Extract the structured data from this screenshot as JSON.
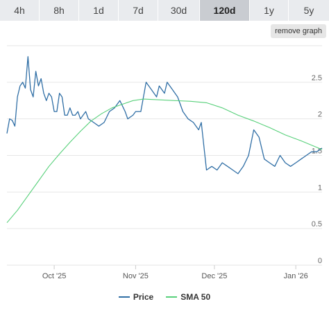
{
  "timeframes": [
    "4h",
    "8h",
    "1d",
    "7d",
    "30d",
    "120d",
    "1y",
    "5y"
  ],
  "active_timeframe": "120d",
  "remove_graph_label": "remove graph",
  "colors": {
    "price": "#2f6ea5",
    "sma": "#57d07a",
    "grid": "#e6e6e6",
    "axis_text": "#666666"
  },
  "chart_data": {
    "type": "line",
    "x_tick_labels": [
      "Oct '25",
      "Nov '25",
      "Dec '25",
      "Jan '26"
    ],
    "x_ticks": [
      "2025-10-01",
      "2025-11-01",
      "2025-12-01",
      "2026-01-01"
    ],
    "xlim": [
      "2025-09-13",
      "2026-01-11"
    ],
    "y_ticks": [
      0,
      0.5,
      1,
      1.5,
      2,
      2.5
    ],
    "y_tick_labels": [
      "0",
      "0.5",
      "1",
      "1.5",
      "2",
      "2.5"
    ],
    "ylim": [
      0,
      3.0
    ],
    "grid": true,
    "legend_position": "bottom",
    "series": [
      {
        "name": "Price",
        "x": [
          "2025-09-13",
          "2025-09-14",
          "2025-09-15",
          "2025-09-16",
          "2025-09-17",
          "2025-09-18",
          "2025-09-19",
          "2025-09-20",
          "2025-09-21",
          "2025-09-22",
          "2025-09-23",
          "2025-09-24",
          "2025-09-25",
          "2025-09-26",
          "2025-09-27",
          "2025-09-28",
          "2025-09-29",
          "2025-09-30",
          "2025-10-01",
          "2025-10-02",
          "2025-10-03",
          "2025-10-04",
          "2025-10-05",
          "2025-10-06",
          "2025-10-07",
          "2025-10-08",
          "2025-10-09",
          "2025-10-10",
          "2025-10-11",
          "2025-10-12",
          "2025-10-13",
          "2025-10-14",
          "2025-10-16",
          "2025-10-18",
          "2025-10-20",
          "2025-10-22",
          "2025-10-24",
          "2025-10-26",
          "2025-10-28",
          "2025-10-29",
          "2025-10-31",
          "2025-11-01",
          "2025-11-03",
          "2025-11-05",
          "2025-11-07",
          "2025-11-09",
          "2025-11-10",
          "2025-11-12",
          "2025-11-13",
          "2025-11-15",
          "2025-11-17",
          "2025-11-19",
          "2025-11-21",
          "2025-11-23",
          "2025-11-24",
          "2025-11-25",
          "2025-11-26",
          "2025-11-28",
          "2025-11-30",
          "2025-12-02",
          "2025-12-04",
          "2025-12-06",
          "2025-12-08",
          "2025-12-10",
          "2025-12-12",
          "2025-12-14",
          "2025-12-16",
          "2025-12-18",
          "2025-12-20",
          "2025-12-22",
          "2025-12-24",
          "2025-12-26",
          "2025-12-28",
          "2025-12-30",
          "2026-01-01",
          "2026-01-03",
          "2026-01-05",
          "2026-01-07",
          "2026-01-09",
          "2026-01-11"
        ],
        "y": [
          1.8,
          2.0,
          1.98,
          1.9,
          2.3,
          2.45,
          2.5,
          2.42,
          2.85,
          2.4,
          2.3,
          2.65,
          2.45,
          2.55,
          2.35,
          2.25,
          2.35,
          2.3,
          2.1,
          2.1,
          2.35,
          2.3,
          2.05,
          2.05,
          2.15,
          2.05,
          2.05,
          2.1,
          2.0,
          2.05,
          2.1,
          2.0,
          1.95,
          1.9,
          1.95,
          2.1,
          2.15,
          2.25,
          2.1,
          2.0,
          2.05,
          2.1,
          2.1,
          2.5,
          2.4,
          2.3,
          2.45,
          2.35,
          2.5,
          2.4,
          2.3,
          2.1,
          2.0,
          1.95,
          1.9,
          1.85,
          1.95,
          1.3,
          1.35,
          1.3,
          1.4,
          1.35,
          1.3,
          1.25,
          1.35,
          1.5,
          1.85,
          1.75,
          1.45,
          1.4,
          1.35,
          1.5,
          1.4,
          1.35,
          1.4,
          1.45,
          1.5,
          1.55,
          1.55,
          1.6
        ]
      },
      {
        "name": "SMA 50",
        "x": [
          "2025-09-13",
          "2025-09-17",
          "2025-09-21",
          "2025-09-25",
          "2025-09-29",
          "2025-10-03",
          "2025-10-07",
          "2025-10-11",
          "2025-10-15",
          "2025-10-19",
          "2025-10-23",
          "2025-10-27",
          "2025-10-31",
          "2025-11-04",
          "2025-11-10",
          "2025-11-16",
          "2025-11-22",
          "2025-11-28",
          "2025-12-04",
          "2025-12-10",
          "2025-12-16",
          "2025-12-22",
          "2025-12-28",
          "2026-01-03",
          "2026-01-11"
        ],
        "y": [
          0.58,
          0.75,
          0.95,
          1.15,
          1.35,
          1.52,
          1.68,
          1.83,
          1.97,
          2.07,
          2.15,
          2.2,
          2.25,
          2.27,
          2.26,
          2.25,
          2.24,
          2.22,
          2.15,
          2.05,
          1.97,
          1.88,
          1.78,
          1.7,
          1.58
        ]
      }
    ]
  }
}
